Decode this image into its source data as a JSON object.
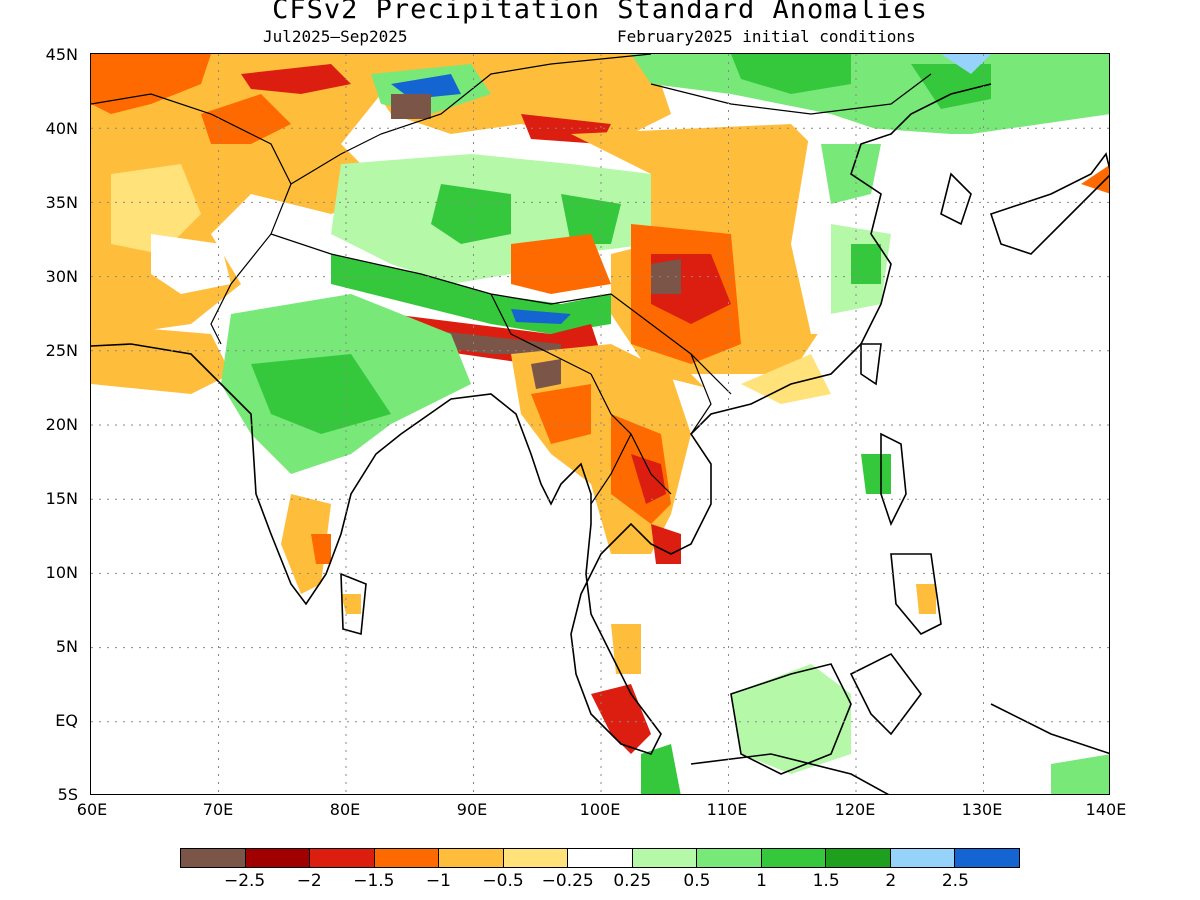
{
  "title": "CFSv2 Precipitation Standard Anomalies",
  "period": "Jul2025–Sep2025",
  "initial_conditions": "February2025 initial conditions",
  "map": {
    "lon_labels": [
      "60E",
      "70E",
      "80E",
      "90E",
      "100E",
      "110E",
      "120E",
      "130E",
      "140E"
    ],
    "lat_labels": [
      "45N",
      "40N",
      "35N",
      "30N",
      "25N",
      "20N",
      "15N",
      "10N",
      "5N",
      "EQ",
      "5S"
    ],
    "lon_range": [
      60,
      140
    ],
    "lat_range": [
      -5,
      45
    ],
    "grid": "dotted"
  },
  "colorbar": {
    "colors": [
      "#7a5548",
      "#a00000",
      "#dc1e10",
      "#ff6a00",
      "#ffbd3c",
      "#ffe27a",
      "#ffffff",
      "#b4f8a8",
      "#78e878",
      "#36c83c",
      "#1ea01e",
      "#96d2fa",
      "#1464d2"
    ],
    "labels": [
      "−2.5",
      "−2",
      "−1.5",
      "−1",
      "−0.5",
      "−0.25",
      "0.25",
      "0.5",
      "1",
      "1.5",
      "2",
      "2.5"
    ]
  }
}
